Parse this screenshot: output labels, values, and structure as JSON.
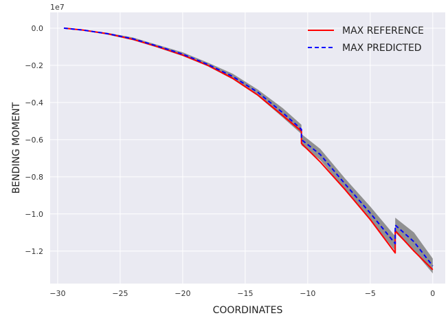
{
  "chart_data": {
    "type": "line",
    "xlabel": "COORDINATES",
    "ylabel": "BENDING MOMENT",
    "y_scale_label": "1e7",
    "xlim": [
      -30.6,
      1.0
    ],
    "ylim": [
      -1.375,
      0.085
    ],
    "x_ticks": [
      -30,
      -25,
      -20,
      -15,
      -10,
      -5,
      0
    ],
    "x_tick_labels": [
      "−30",
      "−25",
      "−20",
      "−15",
      "−10",
      "−5",
      "0"
    ],
    "y_ticks": [
      0.0,
      -0.2,
      -0.4,
      -0.6,
      -0.8,
      -1.0,
      -1.2
    ],
    "y_tick_labels": [
      "0.0",
      "−0.2",
      "−0.4",
      "−0.6",
      "−0.8",
      "−1.0",
      "−1.2"
    ],
    "grid": true,
    "legend_position": "top-right",
    "series": [
      {
        "name": "MAX REFERENCE",
        "color": "#ff0000",
        "style": "solid",
        "x": [
          -29.5,
          -28,
          -26,
          -24,
          -22,
          -20,
          -18,
          -16,
          -14,
          -12,
          -10.5,
          -10.5,
          -9,
          -7,
          -5,
          -3,
          -3,
          -1.5,
          0
        ],
        "y": [
          0.0,
          -0.01,
          -0.03,
          -0.06,
          -0.1,
          -0.145,
          -0.2,
          -0.27,
          -0.36,
          -0.47,
          -0.555,
          -0.62,
          -0.72,
          -0.87,
          -1.03,
          -1.21,
          -1.09,
          -1.2,
          -1.3
        ]
      },
      {
        "name": "MAX PREDICTED",
        "color": "#0000ff",
        "style": "dashed",
        "x": [
          -29.5,
          -28,
          -26,
          -24,
          -22,
          -20,
          -18,
          -16,
          -14,
          -12,
          -10.5,
          -10.5,
          -9,
          -7,
          -5,
          -3,
          -3,
          -1.5,
          0
        ],
        "y": [
          0.0,
          -0.01,
          -0.03,
          -0.057,
          -0.097,
          -0.14,
          -0.195,
          -0.26,
          -0.345,
          -0.455,
          -0.545,
          -0.6,
          -0.68,
          -0.84,
          -0.995,
          -1.16,
          -1.06,
          -1.15,
          -1.28
        ]
      }
    ],
    "confidence_band": {
      "color": "#808080",
      "x": [
        -29.5,
        -28,
        -26,
        -24,
        -22,
        -20,
        -18,
        -16,
        -14,
        -12,
        -10.5,
        -10.5,
        -9,
        -7,
        -5,
        -3,
        -3,
        -1.5,
        0
      ],
      "upper": [
        0.0,
        -0.008,
        -0.025,
        -0.05,
        -0.09,
        -0.13,
        -0.185,
        -0.245,
        -0.33,
        -0.43,
        -0.52,
        -0.57,
        -0.65,
        -0.81,
        -0.96,
        -1.12,
        -1.02,
        -1.1,
        -1.24
      ],
      "lower": [
        0.0,
        -0.012,
        -0.035,
        -0.064,
        -0.105,
        -0.15,
        -0.205,
        -0.275,
        -0.365,
        -0.48,
        -0.57,
        -0.63,
        -0.71,
        -0.87,
        -1.03,
        -1.2,
        -1.1,
        -1.2,
        -1.32
      ]
    }
  }
}
